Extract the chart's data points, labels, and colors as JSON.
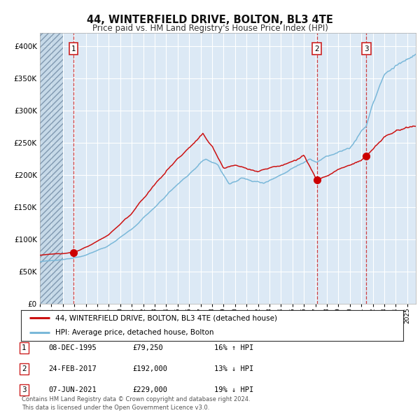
{
  "title": "44, WINTERFIELD DRIVE, BOLTON, BL3 4TE",
  "subtitle": "Price paid vs. HM Land Registry's House Price Index (HPI)",
  "title_fontsize": 10.5,
  "subtitle_fontsize": 8.5,
  "background_color": "#ffffff",
  "plot_bg_color": "#dce9f5",
  "grid_color": "#ffffff",
  "ylim": [
    0,
    420000
  ],
  "yticks": [
    0,
    50000,
    100000,
    150000,
    200000,
    250000,
    300000,
    350000,
    400000
  ],
  "ytick_labels": [
    "£0",
    "£50K",
    "£100K",
    "£150K",
    "£200K",
    "£250K",
    "£300K",
    "£350K",
    "£400K"
  ],
  "hpi_line_color": "#7ab8d9",
  "price_line_color": "#cc1111",
  "marker_color": "#cc0000",
  "vline_color": "#cc2222",
  "sale_dates": [
    1995.93,
    2017.13,
    2021.44
  ],
  "sale_prices": [
    79250,
    192000,
    229000
  ],
  "sale_labels": [
    "1",
    "2",
    "3"
  ],
  "legend_entries": [
    "44, WINTERFIELD DRIVE, BOLTON, BL3 4TE (detached house)",
    "HPI: Average price, detached house, Bolton"
  ],
  "table_rows": [
    [
      "1",
      "08-DEC-1995",
      "£79,250",
      "16% ↑ HPI"
    ],
    [
      "2",
      "24-FEB-2017",
      "£192,000",
      "13% ↓ HPI"
    ],
    [
      "3",
      "07-JUN-2021",
      "£229,000",
      "19% ↓ HPI"
    ]
  ],
  "footnote": "Contains HM Land Registry data © Crown copyright and database right 2024.\nThis data is licensed under the Open Government Licence v3.0.",
  "xstart": 1993.0,
  "xend": 2025.75
}
